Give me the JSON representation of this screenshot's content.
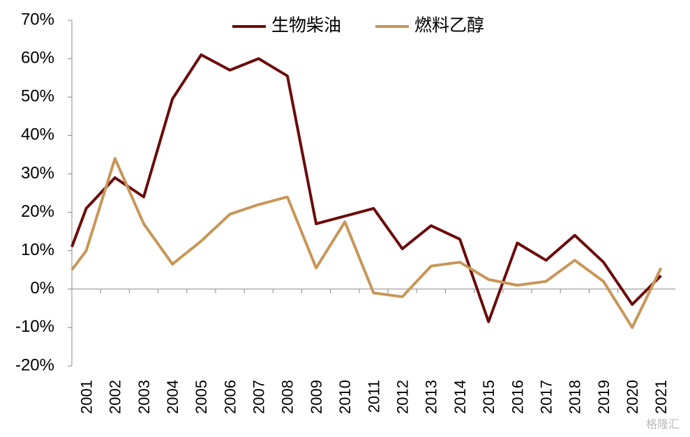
{
  "chart_data": {
    "type": "line",
    "categories": [
      null,
      "2001",
      "2002",
      "2003",
      "2004",
      "2005",
      "2006",
      "2007",
      "2008",
      "2009",
      "2010",
      "2011",
      "2012",
      "2013",
      "2014",
      "2015",
      "2016",
      "2017",
      "2018",
      "2019",
      "2020",
      "2021"
    ],
    "series": [
      {
        "name": "生物柴油",
        "color": "#6b0b0b",
        "values": [
          11,
          21,
          29,
          24,
          49.5,
          61,
          57,
          60,
          55.5,
          17,
          19,
          21,
          10.5,
          16.5,
          13,
          -8.5,
          12,
          7.5,
          14,
          7,
          -4,
          3.5
        ]
      },
      {
        "name": "燃料乙醇",
        "color": "#c89658",
        "values": [
          5,
          10,
          34,
          17,
          6.5,
          12.5,
          19.5,
          22,
          24,
          5.5,
          17.5,
          -1,
          -2,
          6,
          7,
          2.5,
          1,
          2,
          7.5,
          2,
          -10,
          5.5
        ]
      }
    ],
    "ylim": [
      -20,
      70
    ],
    "yticks": [
      {
        "value": -20,
        "label": "-20%"
      },
      {
        "value": -10,
        "label": "-10%"
      },
      {
        "value": 0,
        "label": "0%"
      },
      {
        "value": 10,
        "label": "10%"
      },
      {
        "value": 20,
        "label": "20%"
      },
      {
        "value": 30,
        "label": "30%"
      },
      {
        "value": 40,
        "label": "40%"
      },
      {
        "value": 50,
        "label": "50%"
      },
      {
        "value": 60,
        "label": "60%"
      },
      {
        "value": 70,
        "label": "70%"
      }
    ],
    "grid": false,
    "legend": "top",
    "watermark": "格隆汇"
  }
}
